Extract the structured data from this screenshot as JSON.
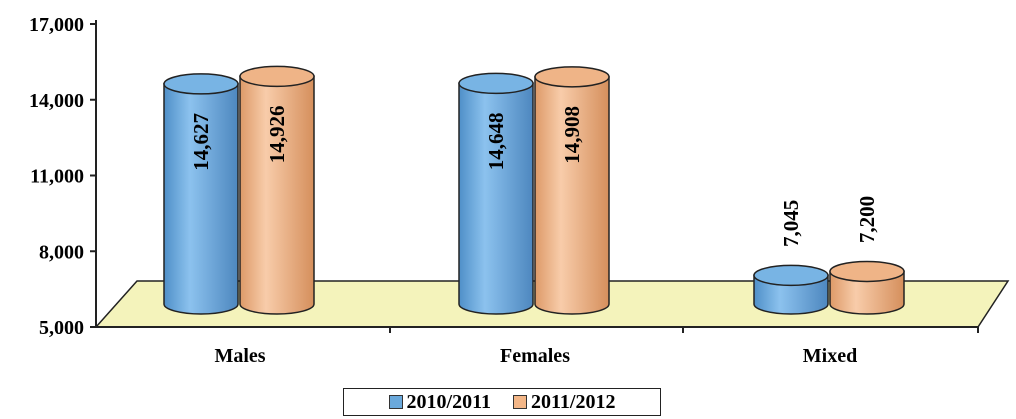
{
  "chart_data": {
    "type": "bar",
    "style": "3d-cylinder",
    "categories": [
      "Males",
      "Females",
      "Mixed"
    ],
    "series": [
      {
        "name": "2010/2011",
        "values": [
          14627,
          14648,
          7045
        ],
        "labels": [
          "14,627",
          "14,648",
          "7,045"
        ],
        "color": "#6aa9dc"
      },
      {
        "name": "2011/2012",
        "values": [
          14926,
          14908,
          7200
        ],
        "labels": [
          "14,926",
          "14,908",
          "7,200"
        ],
        "color": "#f3b687"
      }
    ],
    "y_ticks": [
      "5,000",
      "8,000",
      "11,000",
      "14,000",
      "17,000"
    ],
    "y_tick_values": [
      5000,
      8000,
      11000,
      14000,
      17000
    ],
    "ylim": [
      5000,
      17000
    ],
    "floor_color": "#f4f3bb",
    "grid": false,
    "legend_position": "bottom"
  }
}
